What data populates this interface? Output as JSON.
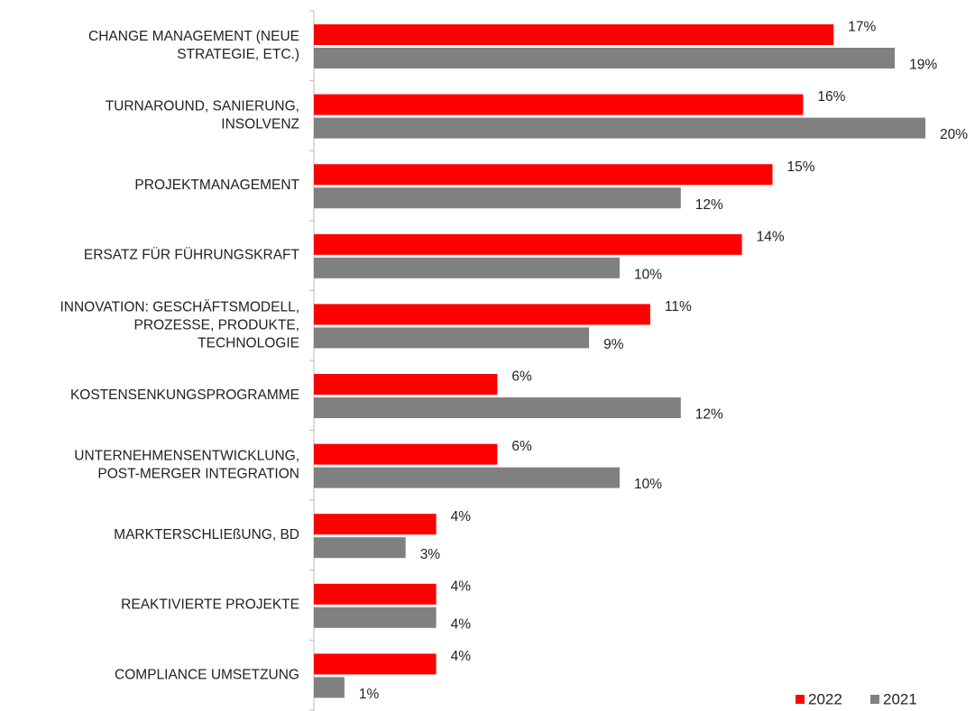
{
  "chart_data": {
    "type": "hbar",
    "categories": [
      [
        "CHANGE MANAGEMENT (NEUE",
        "STRATEGIE, ETC.)"
      ],
      [
        "TURNAROUND, SANIERUNG,",
        "INSOLVENZ"
      ],
      [
        "PROJEKTMANAGEMENT"
      ],
      [
        "ERSATZ FÜR FÜHRUNGSKRAFT"
      ],
      [
        "INNOVATION: GESCHÄFTSMODELL,",
        "PROZESSE, PRODUKTE,",
        "TECHNOLOGIE"
      ],
      [
        "KOSTENSENKUNGSPROGRAMME"
      ],
      [
        "UNTERNEHMENSENTWICKLUNG,",
        "POST-MERGER INTEGRATION"
      ],
      [
        "MARKTERSCHLIEßUNG, BD"
      ],
      [
        "REAKTIVIERTE PROJEKTE"
      ],
      [
        "COMPLIANCE UMSETZUNG"
      ]
    ],
    "series": [
      {
        "name": "2022",
        "color": "#ff0000",
        "values": [
          17,
          16,
          15,
          14,
          11,
          6,
          6,
          4,
          4,
          4
        ],
        "value_labels": [
          "17%",
          "16%",
          "15%",
          "14%",
          "11%",
          "6%",
          "6%",
          "4%",
          "4%",
          "4%"
        ]
      },
      {
        "name": "2021",
        "color": "#808080",
        "values": [
          19,
          20,
          12,
          10,
          9,
          12,
          10,
          3,
          4,
          1
        ],
        "value_labels": [
          "19%",
          "20%",
          "12%",
          "10%",
          "9%",
          "12%",
          "10%",
          "3%",
          "4%",
          "1%"
        ]
      }
    ],
    "legend": "bottom-right"
  }
}
